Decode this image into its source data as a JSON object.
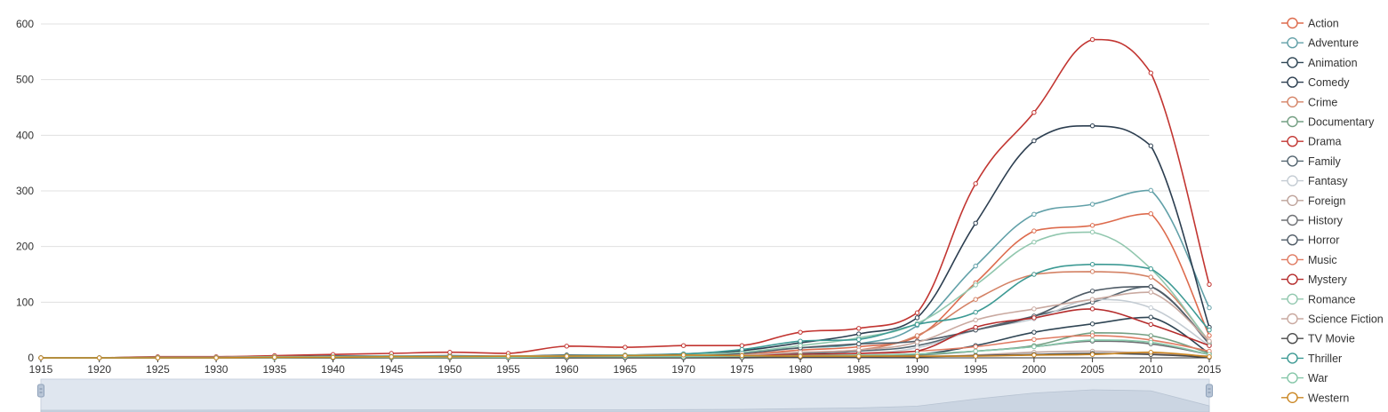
{
  "chart_data": {
    "type": "line",
    "x": [
      1915,
      1920,
      1925,
      1930,
      1935,
      1940,
      1945,
      1950,
      1955,
      1960,
      1965,
      1970,
      1975,
      1980,
      1985,
      1990,
      1995,
      2000,
      2005,
      2010,
      2015
    ],
    "x_ticks": [
      "1915",
      "1920",
      "1925",
      "1930",
      "1935",
      "1940",
      "1945",
      "1950",
      "1955",
      "1960",
      "1965",
      "1970",
      "1975",
      "1980",
      "1985",
      "1990",
      "1995",
      "2000",
      "2005",
      "2010",
      "2015"
    ],
    "y_ticks": [
      "0",
      "100",
      "200",
      "300",
      "400",
      "500",
      "600"
    ],
    "ylim": [
      0,
      600
    ],
    "xlim": [
      1915,
      2015
    ],
    "grid": "horizontal",
    "legend_position": "right",
    "smooth": true,
    "data_zoom_slider": true,
    "series": [
      {
        "name": "Action",
        "color": "#dd6b4d",
        "values": [
          0,
          0,
          1,
          1,
          2,
          2,
          3,
          3,
          2,
          3,
          3,
          4,
          6,
          14,
          20,
          38,
          135,
          228,
          238,
          259,
          40
        ]
      },
      {
        "name": "Adventure",
        "color": "#61a0a8",
        "values": [
          0,
          0,
          1,
          1,
          2,
          3,
          3,
          3,
          2,
          5,
          5,
          7,
          10,
          18,
          25,
          58,
          165,
          258,
          276,
          301,
          90
        ]
      },
      {
        "name": "Animation",
        "color": "#2f4554",
        "values": [
          0,
          0,
          0,
          0,
          0,
          1,
          1,
          1,
          1,
          1,
          1,
          1,
          1,
          2,
          3,
          6,
          22,
          46,
          61,
          73,
          8
        ]
      },
      {
        "name": "Comedy",
        "color": "#2c3e50",
        "values": [
          0,
          0,
          1,
          1,
          2,
          3,
          3,
          4,
          3,
          5,
          5,
          7,
          13,
          27,
          43,
          72,
          242,
          390,
          417,
          381,
          55
        ]
      },
      {
        "name": "Crime",
        "color": "#d48265",
        "values": [
          0,
          0,
          0,
          1,
          1,
          1,
          2,
          2,
          2,
          3,
          4,
          5,
          6,
          10,
          14,
          40,
          105,
          150,
          155,
          145,
          30
        ]
      },
      {
        "name": "Documentary",
        "color": "#749f83",
        "values": [
          0,
          0,
          0,
          0,
          0,
          0,
          0,
          0,
          0,
          0,
          1,
          1,
          1,
          2,
          3,
          5,
          12,
          22,
          45,
          40,
          8
        ]
      },
      {
        "name": "Drama",
        "color": "#c23531",
        "values": [
          0,
          0,
          2,
          2,
          4,
          6,
          8,
          10,
          8,
          21,
          19,
          22,
          22,
          46,
          53,
          81,
          313,
          441,
          572,
          512,
          132
        ]
      },
      {
        "name": "Family",
        "color": "#546570",
        "values": [
          0,
          0,
          0,
          0,
          1,
          1,
          1,
          1,
          1,
          2,
          2,
          3,
          5,
          8,
          12,
          22,
          50,
          75,
          100,
          128,
          25
        ]
      },
      {
        "name": "Fantasy",
        "color": "#c4ccd3",
        "values": [
          0,
          0,
          0,
          0,
          1,
          1,
          1,
          1,
          1,
          1,
          2,
          2,
          3,
          5,
          8,
          18,
          50,
          70,
          105,
          90,
          22
        ]
      },
      {
        "name": "Foreign",
        "color": "#bda29a",
        "values": [
          0,
          0,
          0,
          0,
          0,
          0,
          0,
          0,
          0,
          0,
          0,
          0,
          1,
          1,
          1,
          2,
          5,
          10,
          12,
          8,
          3
        ]
      },
      {
        "name": "History",
        "color": "#6e7074",
        "values": [
          0,
          0,
          0,
          0,
          0,
          0,
          1,
          1,
          1,
          2,
          2,
          2,
          2,
          3,
          4,
          6,
          12,
          20,
          30,
          25,
          6
        ]
      },
      {
        "name": "Horror",
        "color": "#4f5b66",
        "values": [
          0,
          0,
          0,
          0,
          1,
          1,
          1,
          1,
          1,
          2,
          2,
          4,
          8,
          18,
          25,
          30,
          50,
          75,
          120,
          128,
          28
        ]
      },
      {
        "name": "Music",
        "color": "#e07b62",
        "values": [
          0,
          0,
          0,
          0,
          1,
          1,
          1,
          1,
          1,
          2,
          2,
          3,
          4,
          6,
          8,
          12,
          20,
          33,
          40,
          32,
          12
        ]
      },
      {
        "name": "Mystery",
        "color": "#b52c2c",
        "values": [
          0,
          0,
          0,
          0,
          1,
          1,
          1,
          1,
          1,
          2,
          2,
          3,
          4,
          6,
          8,
          12,
          55,
          72,
          88,
          60,
          22
        ]
      },
      {
        "name": "Romance",
        "color": "#91c7ae",
        "values": [
          0,
          0,
          1,
          1,
          2,
          2,
          3,
          3,
          3,
          4,
          5,
          6,
          10,
          22,
          36,
          62,
          131,
          208,
          226,
          160,
          28
        ]
      },
      {
        "name": "Science Fiction",
        "color": "#c9a9a0",
        "values": [
          0,
          0,
          0,
          0,
          1,
          1,
          1,
          1,
          1,
          1,
          2,
          3,
          5,
          10,
          14,
          28,
          68,
          88,
          105,
          118,
          30
        ]
      },
      {
        "name": "TV Movie",
        "color": "#4a4a4a",
        "values": [
          0,
          0,
          0,
          0,
          0,
          0,
          0,
          0,
          0,
          0,
          0,
          0,
          0,
          1,
          1,
          2,
          4,
          6,
          8,
          6,
          1
        ]
      },
      {
        "name": "Thriller",
        "color": "#3d9a94",
        "values": [
          0,
          0,
          0,
          0,
          1,
          1,
          2,
          2,
          2,
          3,
          4,
          7,
          15,
          30,
          33,
          60,
          82,
          150,
          168,
          160,
          50
        ]
      },
      {
        "name": "War",
        "color": "#86c7a9",
        "values": [
          0,
          0,
          0,
          0,
          0,
          1,
          1,
          1,
          1,
          2,
          2,
          2,
          3,
          4,
          5,
          7,
          12,
          20,
          32,
          28,
          6
        ]
      },
      {
        "name": "Western",
        "color": "#ca8622",
        "values": [
          0,
          0,
          0,
          0,
          1,
          1,
          2,
          2,
          3,
          3,
          4,
          5,
          4,
          3,
          3,
          3,
          3,
          5,
          6,
          10,
          2
        ]
      }
    ]
  }
}
